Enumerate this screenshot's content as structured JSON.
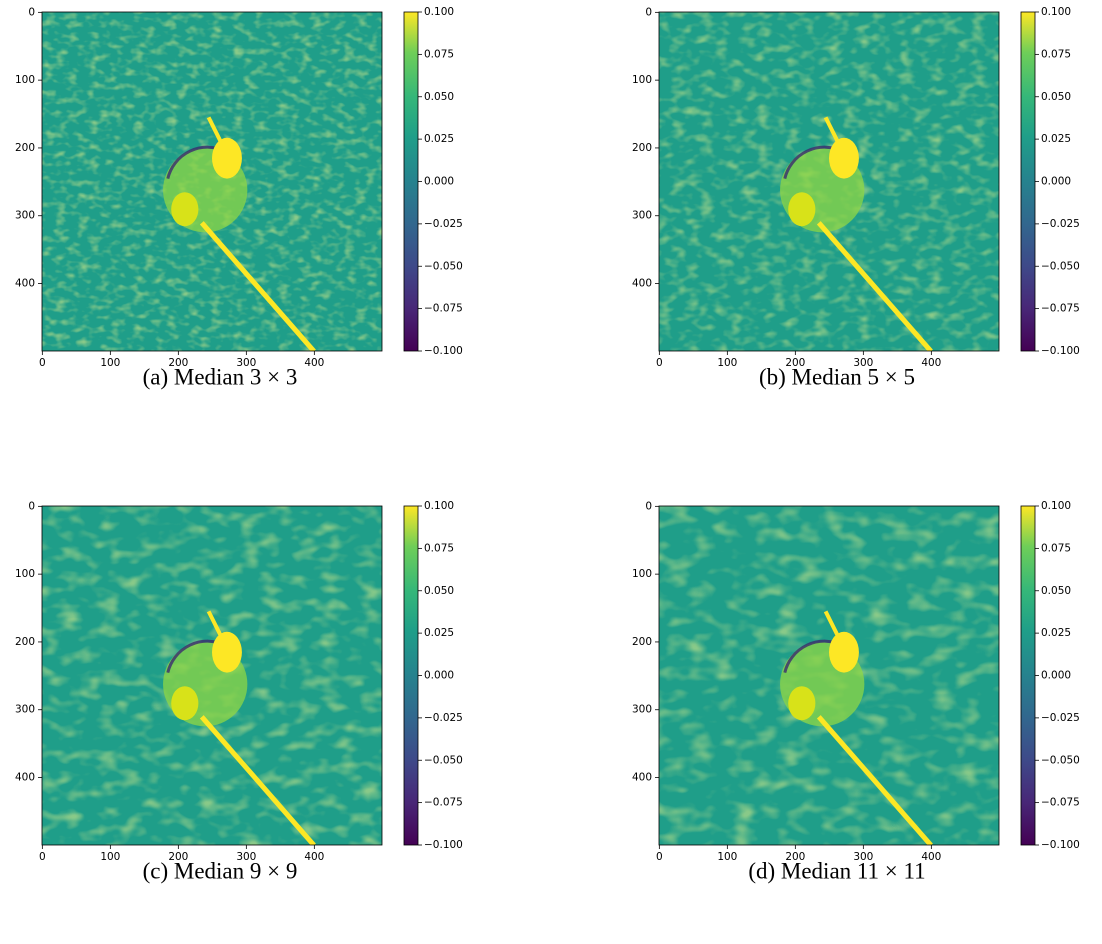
{
  "chart_data": [
    {
      "type": "image",
      "caption": "(a) Median 3 × 3",
      "cmap": "viridis",
      "xlim": [
        -0.5,
        499.5
      ],
      "ylim": [
        499.5,
        -0.5
      ],
      "xticks": [
        0,
        100,
        200,
        300,
        400
      ],
      "yticks": [
        0,
        100,
        200,
        300,
        400
      ],
      "clim": [
        -0.1,
        0.1
      ],
      "cticks": [
        {
          "value": -0.1,
          "label": "−0.100"
        },
        {
          "value": -0.075,
          "label": "−0.075"
        },
        {
          "value": -0.05,
          "label": "−0.050"
        },
        {
          "value": -0.025,
          "label": "−0.025"
        },
        {
          "value": 0,
          "label": "0.000"
        },
        {
          "value": 0.025,
          "label": "0.025"
        },
        {
          "value": 0.05,
          "label": "0.050"
        },
        {
          "value": 0.075,
          "label": "0.075"
        },
        {
          "value": 0.1,
          "label": "0.100"
        }
      ]
    },
    {
      "type": "image",
      "caption": "(b) Median 5 × 5",
      "cmap": "viridis",
      "xlim": [
        -0.5,
        499.5
      ],
      "ylim": [
        499.5,
        -0.5
      ],
      "xticks": [
        0,
        100,
        200,
        300,
        400
      ],
      "yticks": [
        0,
        100,
        200,
        300,
        400
      ],
      "clim": [
        -0.1,
        0.1
      ],
      "cticks": [
        {
          "value": -0.1,
          "label": "−0.100"
        },
        {
          "value": -0.075,
          "label": "−0.075"
        },
        {
          "value": -0.05,
          "label": "−0.050"
        },
        {
          "value": -0.025,
          "label": "−0.025"
        },
        {
          "value": 0,
          "label": "0.000"
        },
        {
          "value": 0.025,
          "label": "0.025"
        },
        {
          "value": 0.05,
          "label": "0.050"
        },
        {
          "value": 0.075,
          "label": "0.075"
        },
        {
          "value": 0.1,
          "label": "0.100"
        }
      ]
    },
    {
      "type": "image",
      "caption": "(c) Median 9 × 9",
      "cmap": "viridis",
      "xlim": [
        -0.5,
        499.5
      ],
      "ylim": [
        499.5,
        -0.5
      ],
      "xticks": [
        0,
        100,
        200,
        300,
        400
      ],
      "yticks": [
        0,
        100,
        200,
        300,
        400
      ],
      "clim": [
        -0.1,
        0.1
      ],
      "cticks": [
        {
          "value": -0.1,
          "label": "−0.100"
        },
        {
          "value": -0.075,
          "label": "−0.075"
        },
        {
          "value": -0.05,
          "label": "−0.050"
        },
        {
          "value": -0.025,
          "label": "−0.025"
        },
        {
          "value": 0,
          "label": "0.000"
        },
        {
          "value": 0.025,
          "label": "0.025"
        },
        {
          "value": 0.05,
          "label": "0.050"
        },
        {
          "value": 0.075,
          "label": "0.075"
        },
        {
          "value": 0.1,
          "label": "0.100"
        }
      ]
    },
    {
      "type": "image",
      "caption": "(d) Median 11 × 11",
      "cmap": "viridis",
      "xlim": [
        -0.5,
        499.5
      ],
      "ylim": [
        499.5,
        -0.5
      ],
      "xticks": [
        0,
        100,
        200,
        300,
        400
      ],
      "yticks": [
        0,
        100,
        200,
        300,
        400
      ],
      "clim": [
        -0.1,
        0.1
      ],
      "cticks": [
        {
          "value": -0.1,
          "label": "−0.100"
        },
        {
          "value": -0.075,
          "label": "−0.075"
        },
        {
          "value": -0.05,
          "label": "−0.050"
        },
        {
          "value": -0.025,
          "label": "−0.025"
        },
        {
          "value": 0,
          "label": "0.000"
        },
        {
          "value": 0.025,
          "label": "0.025"
        },
        {
          "value": 0.05,
          "label": "0.050"
        },
        {
          "value": 0.075,
          "label": "0.075"
        },
        {
          "value": 0.1,
          "label": "0.100"
        }
      ]
    }
  ]
}
